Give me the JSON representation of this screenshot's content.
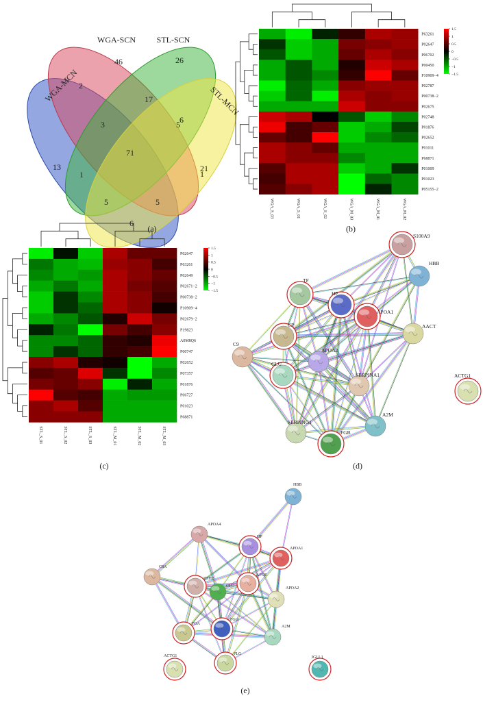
{
  "panel_labels": [
    "(a)",
    "(b)",
    "(c)",
    "(d)",
    "(e)"
  ],
  "venn": {
    "sets": [
      "WGA-MCN",
      "WGA-SCN",
      "STL-SCN",
      "STL-MCN"
    ],
    "counts": [
      13,
      46,
      26,
      21,
      2,
      17,
      6,
      3,
      5,
      1,
      71,
      1,
      5,
      5,
      6
    ]
  },
  "heatmap_b": {
    "rows": [
      "P63261",
      "P02647",
      "P06702",
      "P00450",
      "P10909−4",
      "P02787",
      "P00738−2",
      "P02675",
      "P02748",
      "P01876",
      "P02652",
      "P01011",
      "P68871",
      "P01009",
      "P01023",
      "P05155−2"
    ],
    "columns": [
      "WGA_S_03",
      "WGA_S_01",
      "WGA_S_02",
      "WGA_M_03",
      "WGA_M_01",
      "WGA_M_02"
    ],
    "values": [
      [
        -1.0,
        -1.4,
        -0.2,
        0.3,
        1.0,
        0.9
      ],
      [
        -0.3,
        -1.2,
        -1.0,
        0.7,
        0.8,
        0.9
      ],
      [
        -0.5,
        -1.2,
        -1.0,
        0.6,
        1.0,
        0.8
      ],
      [
        -1.0,
        -0.5,
        -1.0,
        0.2,
        1.2,
        1.0
      ],
      [
        -1.0,
        -0.5,
        -0.8,
        0.3,
        1.5,
        0.6
      ],
      [
        -1.4,
        -0.6,
        -1.0,
        0.8,
        0.9,
        0.9
      ],
      [
        -1.2,
        -0.6,
        -1.4,
        1.0,
        0.8,
        0.9
      ],
      [
        -1.0,
        -1.0,
        -1.0,
        1.2,
        0.8,
        0.8
      ],
      [
        1.2,
        1.0,
        0.0,
        -0.5,
        -1.2,
        -0.8
      ],
      [
        1.4,
        0.4,
        0.6,
        -1.2,
        -1.0,
        -0.4
      ],
      [
        0.6,
        0.4,
        1.5,
        -1.2,
        -0.8,
        -0.6
      ],
      [
        1.0,
        0.8,
        0.6,
        -1.0,
        -1.0,
        -1.0
      ],
      [
        1.0,
        0.8,
        0.8,
        -0.8,
        -1.0,
        -1.0
      ],
      [
        0.5,
        1.0,
        1.0,
        -1.2,
        -1.0,
        -0.3
      ],
      [
        0.4,
        1.0,
        1.0,
        -1.5,
        -0.6,
        -0.8
      ],
      [
        0.5,
        0.8,
        1.0,
        -1.5,
        -0.2,
        -0.8
      ]
    ],
    "limits": [
      -1.5,
      1.5
    ],
    "colors": [
      "#00ff00",
      "#000000",
      "#ff0000"
    ],
    "colorbar_ticks": [
      1.5,
      1,
      0.5,
      0,
      {
        "value": -0.5,
        "label": "−0.5"
      },
      {
        "value": -1,
        "label": "−1"
      },
      {
        "value": -1.5,
        "label": "−1.5"
      }
    ]
  },
  "heatmap_c": {
    "rows": [
      "P02647",
      "P63261",
      "P02649",
      "P02671−2",
      "P00738−2",
      "P10909−4",
      "P02679−2",
      "P19823",
      "A0M8Q6",
      "P00747",
      "P02652",
      "P07357",
      "P01876",
      "P06727",
      "P01023",
      "P68871"
    ],
    "columns": [
      "STL_S_01",
      "STL_S_02",
      "STL_S_03",
      "STL_M_01",
      "STL_M_02",
      "STL_M_03"
    ],
    "values": [
      [
        -1.4,
        -0.1,
        -1.2,
        1.0,
        0.6,
        0.6
      ],
      [
        -0.7,
        -1.0,
        -1.1,
        0.9,
        0.8,
        0.4
      ],
      [
        -0.8,
        -1.0,
        -0.9,
        1.0,
        0.8,
        0.6
      ],
      [
        -1.0,
        -0.7,
        -1.0,
        1.0,
        0.7,
        0.5
      ],
      [
        -1.2,
        -0.3,
        -0.8,
        1.0,
        0.8,
        0.4
      ],
      [
        -1.2,
        -0.3,
        -0.6,
        1.0,
        0.8,
        0.1
      ],
      [
        -1.0,
        -0.8,
        -0.5,
        0.2,
        1.2,
        0.7
      ],
      [
        -0.2,
        -0.7,
        -1.5,
        0.7,
        0.4,
        0.8
      ],
      [
        -0.8,
        -0.8,
        -0.6,
        0.3,
        0.2,
        1.4
      ],
      [
        -0.8,
        -0.3,
        -0.6,
        0.3,
        0.4,
        1.5
      ],
      [
        0.8,
        1.0,
        0.2,
        0.1,
        -1.5,
        -1.0
      ],
      [
        0.5,
        0.6,
        1.3,
        -0.3,
        -1.5,
        -0.8
      ],
      [
        0.7,
        0.6,
        0.8,
        -1.4,
        -0.2,
        -1.0
      ],
      [
        1.5,
        0.5,
        0.4,
        -1.0,
        -0.9,
        -0.9
      ],
      [
        0.8,
        1.0,
        0.5,
        -1.0,
        -1.0,
        -1.0
      ],
      [
        0.8,
        0.8,
        0.8,
        -1.0,
        -1.0,
        -1.0
      ]
    ],
    "limits": [
      -1.5,
      1.5
    ],
    "colors": [
      "#00ff00",
      "#000000",
      "#ff0000"
    ],
    "colorbar_ticks": [
      1.5,
      1,
      0.5,
      0,
      {
        "value": -0.5,
        "label": "−0.5"
      },
      {
        "value": -1,
        "label": "−1"
      },
      {
        "value": -1.5,
        "label": "−1.5"
      }
    ]
  },
  "network_d": {
    "nodes": [
      "S100A9",
      "HBB",
      "TF",
      "HP",
      "APOA1",
      "CP",
      "AACT",
      "C9",
      "APOA2",
      "SERPINA1",
      "CLU",
      "ACTG1",
      "A2M",
      "SERPING1",
      "FGB"
    ]
  },
  "network_e": {
    "nodes": [
      "HBB",
      "APOA4",
      "HP",
      "APOA1",
      "C8A",
      "ITIH2",
      "APOE",
      "CLU",
      "APOA2",
      "FGA",
      "FGG",
      "A2M",
      "ACTG1",
      "PLG",
      "IGLL1"
    ]
  }
}
